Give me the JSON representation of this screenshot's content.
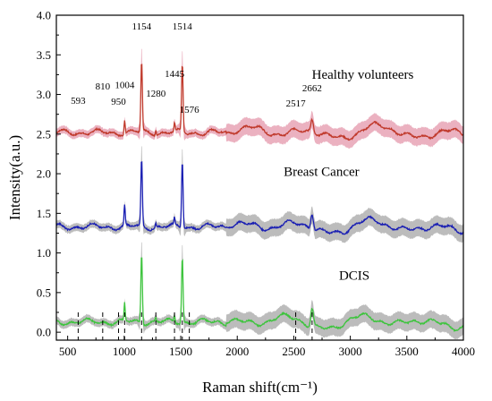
{
  "chart_data": {
    "type": "line",
    "xlabel": "Raman shift(cm⁻¹)",
    "ylabel": "Intensity(a.u.)",
    "xlim": [
      400,
      4000
    ],
    "ylim": [
      -0.1,
      4.0
    ],
    "xticks": [
      500,
      1000,
      1500,
      2000,
      2500,
      3000,
      3500,
      4000
    ],
    "xtick_labels": [
      "500",
      "1000",
      "1500",
      "2000",
      "2500",
      "3000",
      "3500",
      "4000"
    ],
    "yticks": [
      0.0,
      0.5,
      1.0,
      1.5,
      2.0,
      2.5,
      3.0,
      3.5,
      4.0
    ],
    "ytick_labels": [
      "0.0",
      "0.5",
      "1.0",
      "1.5",
      "2.0",
      "2.5",
      "3.0",
      "3.5",
      "4.0"
    ],
    "grid": false,
    "peak_lines": [
      593,
      810,
      950,
      1004,
      1154,
      1280,
      1445,
      1514,
      1576,
      2517,
      2662
    ],
    "peak_annotations": [
      {
        "label": "593",
        "x": 593,
        "y": 2.88
      },
      {
        "label": "810",
        "x": 810,
        "y": 3.06
      },
      {
        "label": "950",
        "x": 950,
        "y": 2.87
      },
      {
        "label": "1004",
        "x": 1004,
        "y": 3.08
      },
      {
        "label": "1154",
        "x": 1154,
        "y": 3.82
      },
      {
        "label": "1280",
        "x": 1280,
        "y": 2.97
      },
      {
        "label": "1445",
        "x": 1445,
        "y": 3.22
      },
      {
        "label": "1514",
        "x": 1514,
        "y": 3.82
      },
      {
        "label": "1576",
        "x": 1576,
        "y": 2.77
      },
      {
        "label": "2517",
        "x": 2517,
        "y": 2.85
      },
      {
        "label": "2662",
        "x": 2662,
        "y": 3.04
      }
    ],
    "series": [
      {
        "name": "Healthy volunteers",
        "baseline": 2.52,
        "line_color": "#c0392b",
        "band_color": "#e8a3b5",
        "peaks": [
          [
            1004,
            0.18
          ],
          [
            1154,
            0.88
          ],
          [
            1514,
            0.85
          ],
          [
            1280,
            0.06
          ],
          [
            1445,
            0.1
          ],
          [
            2662,
            0.16
          ]
        ]
      },
      {
        "name": "Breast Cancer",
        "baseline": 1.33,
        "line_color": "#1a1fb3",
        "band_color": "#b0b0b0",
        "peaks": [
          [
            1004,
            0.26
          ],
          [
            1154,
            0.83
          ],
          [
            1514,
            0.84
          ],
          [
            1280,
            0.05
          ],
          [
            1445,
            0.08
          ],
          [
            2662,
            0.2
          ]
        ]
      },
      {
        "name": "DCIS",
        "baseline": 0.13,
        "line_color": "#3ec43e",
        "band_color": "#b0b0b0",
        "peaks": [
          [
            1004,
            0.22
          ],
          [
            1154,
            0.87
          ],
          [
            1514,
            0.82
          ],
          [
            1280,
            0.05
          ],
          [
            1445,
            0.08
          ],
          [
            2662,
            0.22
          ]
        ]
      }
    ],
    "series_labels": [
      {
        "text": "Healthy volunteers",
        "x": 3110,
        "y": 3.2
      },
      {
        "text": "Breast Cancer",
        "x": 2745,
        "y": 1.97
      },
      {
        "text": "DCIS",
        "x": 3035,
        "y": 0.66
      }
    ]
  }
}
